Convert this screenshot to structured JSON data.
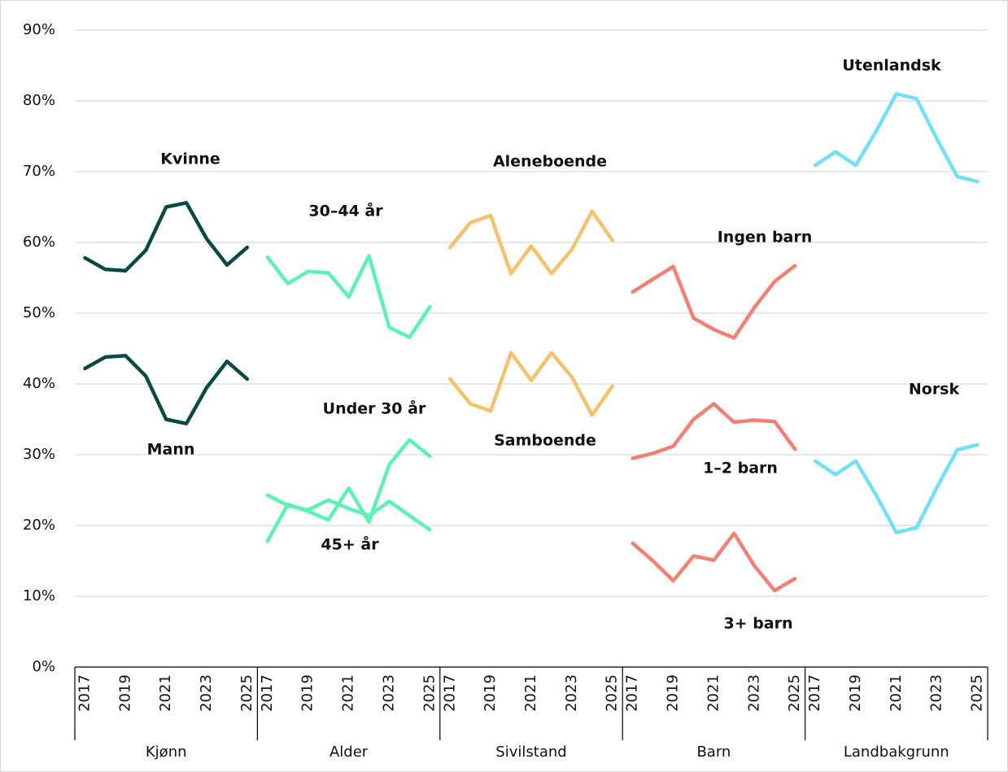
{
  "chart_data": {
    "type": "line",
    "ylim": [
      0,
      90
    ],
    "yticks": [
      {
        "value": 0,
        "label": "0%"
      },
      {
        "value": 10,
        "label": "10%"
      },
      {
        "value": 20,
        "label": "20%"
      },
      {
        "value": 30,
        "label": "30%"
      },
      {
        "value": 40,
        "label": "40%"
      },
      {
        "value": 50,
        "label": "50%"
      },
      {
        "value": 60,
        "label": "60%"
      },
      {
        "value": 70,
        "label": "70%"
      },
      {
        "value": 80,
        "label": "80%"
      },
      {
        "value": 90,
        "label": "90%"
      }
    ],
    "grid": true,
    "groups": [
      {
        "name": "Kjønn",
        "categories": [
          "2017",
          null,
          "2019",
          null,
          "2021",
          null,
          "2023",
          null,
          "2025"
        ],
        "series": [
          {
            "name": "Kvinne",
            "color": "#0b4a40",
            "label_color": "#0b4a40",
            "values": [
              57.8,
              56.2,
              56.0,
              58.9,
              65.0,
              65.6,
              60.5,
              56.8,
              59.3
            ]
          },
          {
            "name": "Mann",
            "color": "#0b4a40",
            "label_color": "#0b4a40",
            "values": [
              42.2,
              43.8,
              44.0,
              41.1,
              35.0,
              34.4,
              39.5,
              43.2,
              40.7
            ]
          }
        ]
      },
      {
        "name": "Alder",
        "categories": [
          "2017",
          null,
          "2019",
          null,
          "2021",
          null,
          "2023",
          null,
          "2025"
        ],
        "series": [
          {
            "name": "30–44 år",
            "color": "#5cf2b0",
            "label_color": "#1aa867",
            "values": [
              57.9,
              54.2,
              55.9,
              55.7,
              52.3,
              58.1,
              48.0,
              46.6,
              50.9
            ]
          },
          {
            "name": "Under 30 år",
            "color": "#5cf2b0",
            "label_color": "#1aa867",
            "values": [
              17.8,
              23.0,
              22.0,
              20.8,
              25.3,
              20.5,
              28.6,
              32.1,
              29.8
            ]
          },
          {
            "name": "45+ år",
            "color": "#5cf2b0",
            "label_color": "#1aa867",
            "values": [
              24.3,
              22.8,
              22.2,
              23.6,
              22.4,
              21.4,
              23.4,
              21.4,
              19.4
            ]
          }
        ]
      },
      {
        "name": "Sivilstand",
        "categories": [
          "2017",
          null,
          "2019",
          null,
          "2021",
          null,
          "2023",
          null,
          "2025"
        ],
        "series": [
          {
            "name": "Aleneboende",
            "color": "#f5c26b",
            "label_color": "#b07d10",
            "values": [
              59.3,
              62.8,
              63.8,
              55.6,
              59.5,
              55.6,
              59.0,
              64.4,
              60.3
            ]
          },
          {
            "name": "Samboende",
            "color": "#f5c26b",
            "label_color": "#b07d10",
            "values": [
              40.7,
              37.2,
              36.2,
              44.4,
              40.5,
              44.4,
              41.0,
              35.6,
              39.7
            ]
          }
        ]
      },
      {
        "name": "Barn",
        "categories": [
          "2017",
          null,
          "2019",
          null,
          "2021",
          null,
          "2023",
          null,
          "2025"
        ],
        "series": [
          {
            "name": "Ingen barn",
            "color": "#f47f72",
            "label_color": "#b81c10",
            "values": [
              53.0,
              54.8,
              56.6,
              49.3,
              47.7,
              46.5,
              50.8,
              54.5,
              56.7
            ]
          },
          {
            "name": "1–2 barn",
            "color": "#f47f72",
            "label_color": "#b81c10",
            "values": [
              29.5,
              30.2,
              31.2,
              35.0,
              37.2,
              34.6,
              34.9,
              34.7,
              30.8
            ]
          },
          {
            "name": "3+ barn",
            "color": "#f47f72",
            "label_color": "#b81c10",
            "values": [
              17.5,
              15.0,
              12.2,
              15.7,
              15.1,
              18.9,
              14.3,
              10.8,
              12.5
            ]
          }
        ]
      },
      {
        "name": "Landbakgrunn",
        "categories": [
          "2017",
          null,
          "2019",
          null,
          "2021",
          null,
          "2023",
          null,
          "2025"
        ],
        "series": [
          {
            "name": "Utenlandsk",
            "color": "#72e0f8",
            "label_color": "#12a8c4",
            "values": [
              70.9,
              72.8,
              70.9,
              75.7,
              81.0,
              80.3,
              74.6,
              69.3,
              68.6
            ]
          },
          {
            "name": "Norsk",
            "color": "#72e0f8",
            "label_color": "#12a8c4",
            "values": [
              29.1,
              27.2,
              29.1,
              24.3,
              19.0,
              19.7,
              25.4,
              30.7,
              31.4
            ]
          }
        ]
      }
    ]
  }
}
